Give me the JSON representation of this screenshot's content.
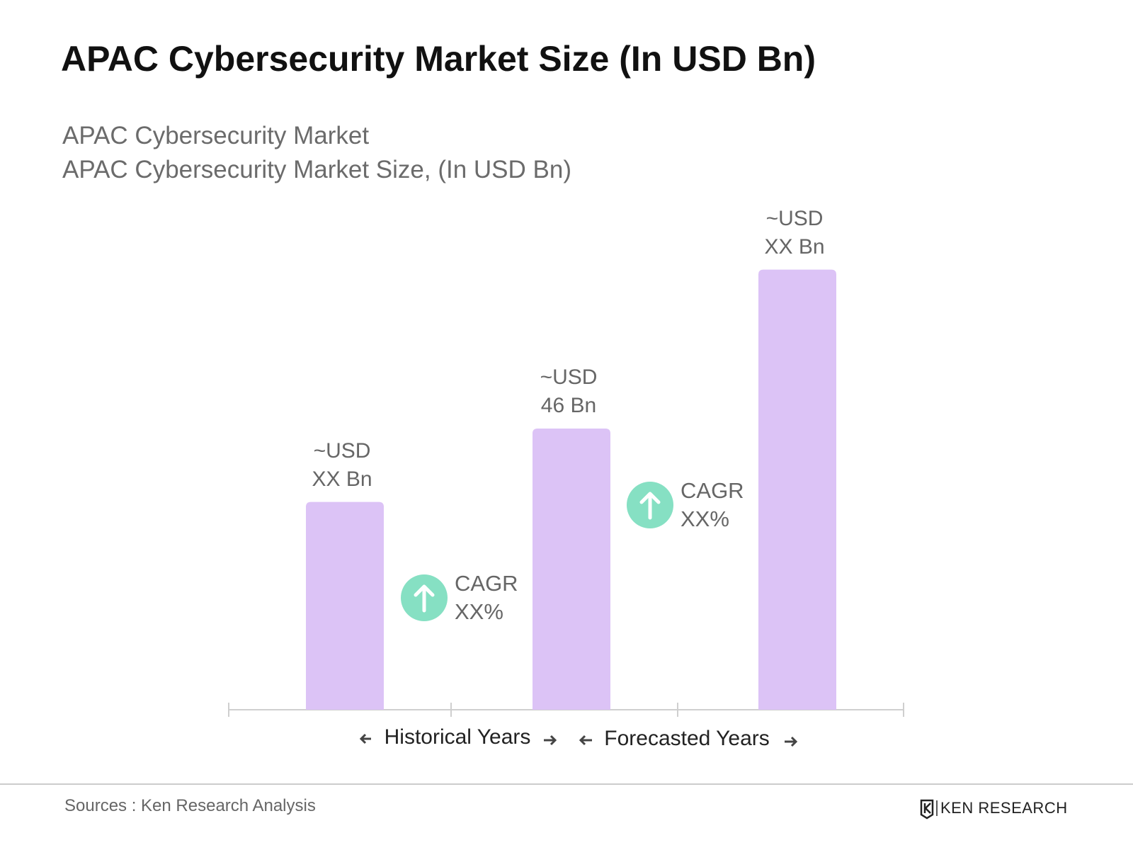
{
  "chart_data": {
    "type": "bar",
    "title": "APAC Cybersecurity Market Size (In USD Bn)",
    "subtitle": [
      "APAC Cybersecurity Market",
      "APAC Cybersecurity Market Size, (In USD Bn)"
    ],
    "categories": [
      null,
      null,
      null
    ],
    "values": [
      34,
      46,
      72
    ],
    "value_labels": [
      "~USD\nXX Bn",
      "~USD\n46 Bn",
      "~USD\nXX Bn"
    ],
    "color": "#dcc3f6",
    "annotations": [
      "CAGR\nXX%",
      "CAGR\nXX%"
    ],
    "period_labels": [
      "Historical Years",
      "Forecasted Years"
    ],
    "source": "Sources : Ken Research Analysis",
    "logo": "KEN RESEARCH"
  }
}
